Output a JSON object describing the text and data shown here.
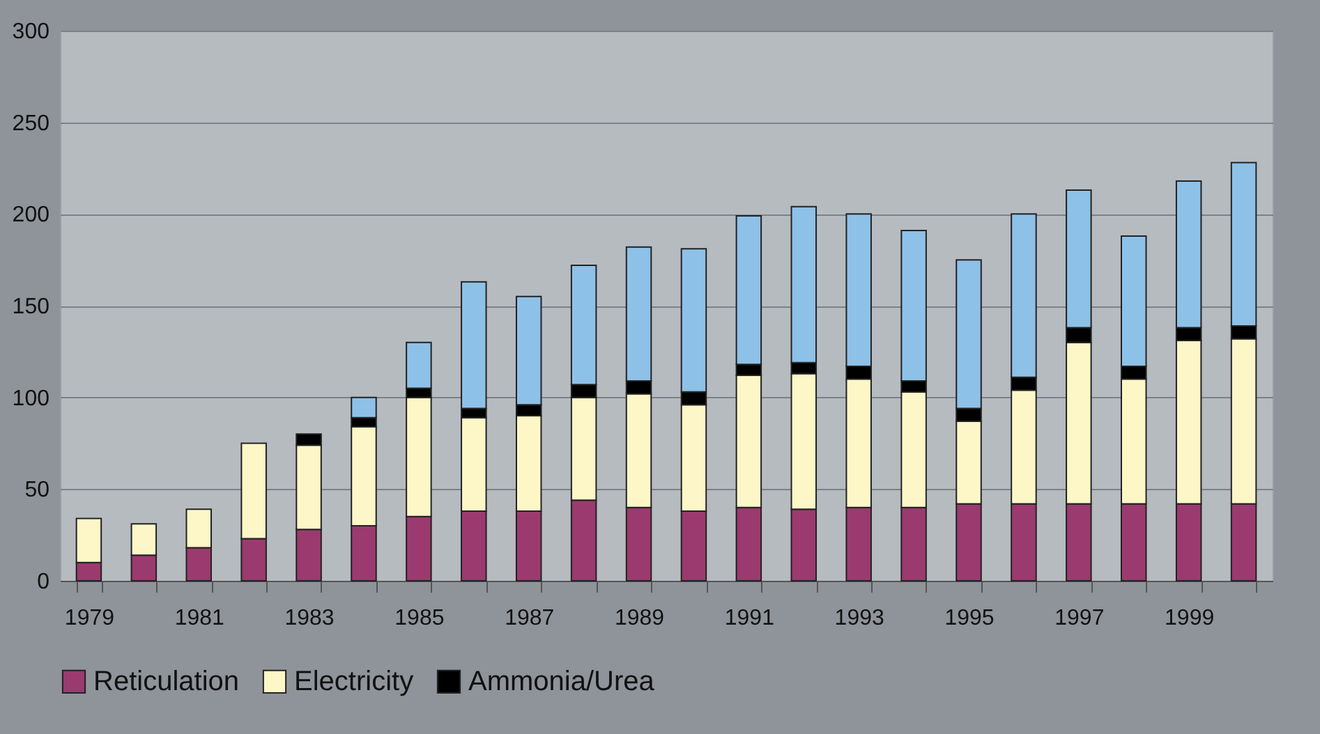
{
  "chart_data": {
    "type": "bar",
    "stacked": true,
    "categories": [
      "1979",
      null,
      "1981",
      null,
      "1983",
      null,
      "1985",
      null,
      "1987",
      null,
      "1989",
      null,
      "1991",
      null,
      "1993",
      null,
      "1995",
      null,
      "1997",
      null,
      "1999",
      null
    ],
    "series": [
      {
        "name": "Reticulation",
        "color": "#9b3a6e",
        "values": [
          10,
          14,
          18,
          23,
          28,
          30,
          35,
          38,
          38,
          44,
          40,
          38,
          40,
          39,
          40,
          40,
          42,
          42,
          42,
          42,
          42,
          42
        ]
      },
      {
        "name": "Electricity",
        "color": "#fdf7c8",
        "values": [
          24,
          17,
          21,
          52,
          46,
          54,
          65,
          51,
          52,
          56,
          62,
          58,
          72,
          74,
          70,
          63,
          45,
          62,
          88,
          68,
          89,
          90
        ]
      },
      {
        "name": "Ammonia/Urea",
        "color": "#000000",
        "values": [
          null,
          null,
          null,
          null,
          6,
          5,
          5,
          5,
          6,
          7,
          7,
          7,
          6,
          6,
          7,
          6,
          7,
          7,
          8,
          7,
          7,
          7
        ]
      },
      {
        "color": "#8ec1e8",
        "values": [
          null,
          null,
          null,
          null,
          null,
          11,
          25,
          69,
          59,
          65,
          73,
          78,
          81,
          85,
          83,
          82,
          81,
          89,
          75,
          71,
          80,
          89
        ]
      }
    ],
    "ylim": [
      0,
      300
    ],
    "yticks": [
      0,
      50,
      100,
      150,
      200,
      250,
      300
    ],
    "grid": "y",
    "legend": "bottom"
  }
}
